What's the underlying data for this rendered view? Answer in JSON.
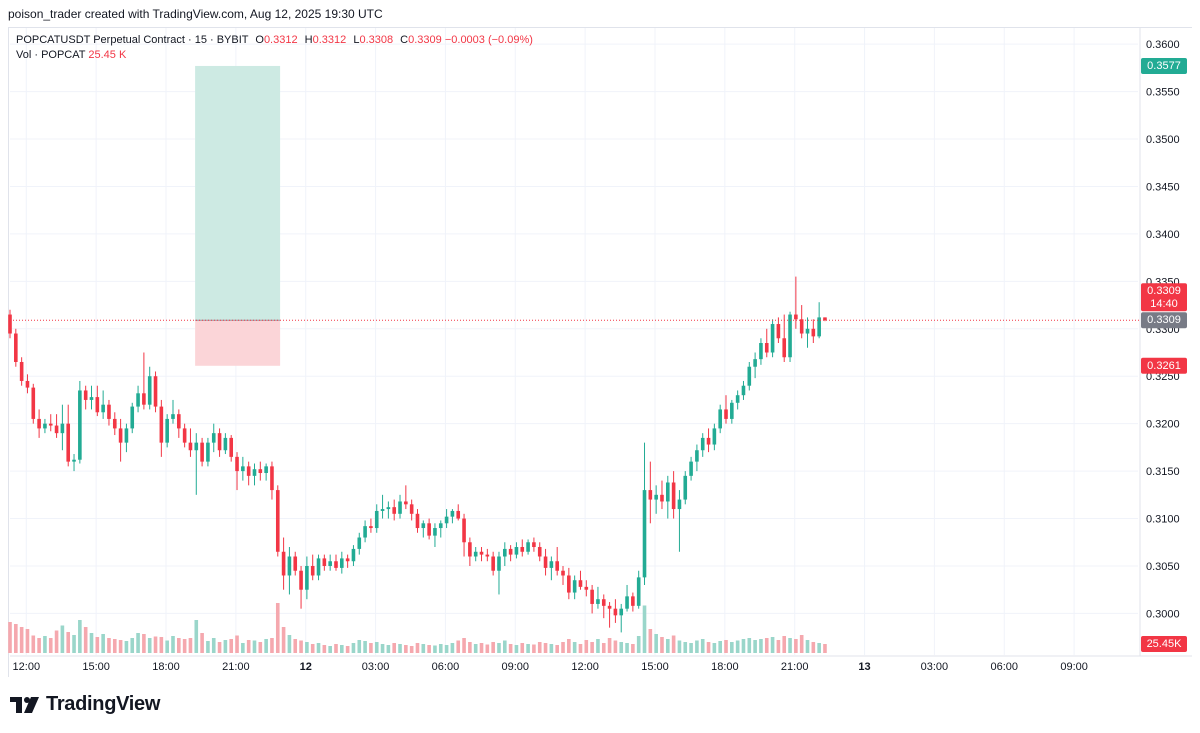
{
  "header": {
    "attribution": "poison_trader created with TradingView.com, Aug 12, 2025 19:30 UTC"
  },
  "legend": {
    "symbol": "POPCATUSDT Perpetual Contract · 15 · BYBIT",
    "open_label": "O",
    "open": "0.3312",
    "high_label": "H",
    "high": "0.3312",
    "low_label": "L",
    "low": "0.3308",
    "close_label": "C",
    "close": "0.3309",
    "change": "−0.0003 (−0.09%)",
    "vol_label": "Vol · POPCAT",
    "vol_value": "25.45 K"
  },
  "brand": {
    "name": "TradingView",
    "logo_icon": "tradingview-logo-icon"
  },
  "colors": {
    "up": "#22ab94",
    "down": "#f23645",
    "vol_up": "#9ad6ca",
    "vol_down": "#f5a8ae",
    "target_zone": "#cdeae3",
    "stop_zone": "#fbd5d8",
    "axis_text": "#131722",
    "grid": "#f0f3fa"
  },
  "chart_data": {
    "type": "candlestick",
    "interval": "15",
    "price_axis_ticks": [
      "0.3600",
      "0.3550",
      "0.3500",
      "0.3450",
      "0.3400",
      "0.3350",
      "0.3300",
      "0.3250",
      "0.3200",
      "0.3150",
      "0.3100",
      "0.3050",
      "0.3000"
    ],
    "ylim": [
      0.2972,
      0.3617
    ],
    "time_axis_ticks": [
      {
        "label": "12:00",
        "hour": 12,
        "bold": false
      },
      {
        "label": "15:00",
        "hour": 15,
        "bold": false
      },
      {
        "label": "18:00",
        "hour": 18,
        "bold": false
      },
      {
        "label": "21:00",
        "hour": 21,
        "bold": false
      },
      {
        "label": "12",
        "hour": 24,
        "bold": true
      },
      {
        "label": "03:00",
        "hour": 27,
        "bold": false
      },
      {
        "label": "06:00",
        "hour": 30,
        "bold": false
      },
      {
        "label": "09:00",
        "hour": 33,
        "bold": false
      },
      {
        "label": "12:00",
        "hour": 36,
        "bold": false
      },
      {
        "label": "15:00",
        "hour": 39,
        "bold": false
      },
      {
        "label": "18:00",
        "hour": 42,
        "bold": false
      },
      {
        "label": "21:00",
        "hour": 45,
        "bold": false
      },
      {
        "label": "13",
        "hour": 48,
        "bold": true
      },
      {
        "label": "03:00",
        "hour": 51,
        "bold": false
      },
      {
        "label": "06:00",
        "hour": 54,
        "bold": false
      },
      {
        "label": "09:00",
        "hour": 57,
        "bold": false
      }
    ],
    "xlim_hours": [
      11.3,
      59.4
    ],
    "first_candle_hour": 11.3,
    "candle_interval_hours": 0.25,
    "ohlc": [
      [
        0.3315,
        0.332,
        0.329,
        0.3295
      ],
      [
        0.3295,
        0.33,
        0.326,
        0.3265
      ],
      [
        0.3265,
        0.327,
        0.324,
        0.3245
      ],
      [
        0.3245,
        0.3252,
        0.3232,
        0.3238
      ],
      [
        0.3238,
        0.3242,
        0.32,
        0.3205
      ],
      [
        0.3205,
        0.3215,
        0.3185,
        0.3195
      ],
      [
        0.3195,
        0.3205,
        0.319,
        0.32
      ],
      [
        0.32,
        0.321,
        0.3192,
        0.3198
      ],
      [
        0.3198,
        0.321,
        0.3185,
        0.319
      ],
      [
        0.319,
        0.322,
        0.3172,
        0.32
      ],
      [
        0.32,
        0.322,
        0.3155,
        0.316
      ],
      [
        0.316,
        0.3168,
        0.315,
        0.3162
      ],
      [
        0.3162,
        0.3245,
        0.3158,
        0.3235
      ],
      [
        0.3235,
        0.324,
        0.3215,
        0.3225
      ],
      [
        0.3225,
        0.324,
        0.3215,
        0.3228
      ],
      [
        0.3228,
        0.324,
        0.3208,
        0.3212
      ],
      [
        0.3212,
        0.3235,
        0.3205,
        0.322
      ],
      [
        0.322,
        0.3225,
        0.3198,
        0.3205
      ],
      [
        0.3205,
        0.3212,
        0.3188,
        0.3195
      ],
      [
        0.3195,
        0.3205,
        0.316,
        0.318
      ],
      [
        0.318,
        0.32,
        0.317,
        0.3195
      ],
      [
        0.3195,
        0.3222,
        0.319,
        0.3218
      ],
      [
        0.3218,
        0.324,
        0.3212,
        0.3232
      ],
      [
        0.3232,
        0.3275,
        0.3215,
        0.322
      ],
      [
        0.322,
        0.326,
        0.3215,
        0.325
      ],
      [
        0.325,
        0.3255,
        0.3212,
        0.3218
      ],
      [
        0.3218,
        0.3225,
        0.3165,
        0.318
      ],
      [
        0.318,
        0.321,
        0.3175,
        0.3205
      ],
      [
        0.3205,
        0.3225,
        0.32,
        0.321
      ],
      [
        0.321,
        0.3215,
        0.3185,
        0.3195
      ],
      [
        0.3195,
        0.32,
        0.3175,
        0.318
      ],
      [
        0.318,
        0.3195,
        0.3165,
        0.3172
      ],
      [
        0.3172,
        0.319,
        0.3125,
        0.318
      ],
      [
        0.318,
        0.3185,
        0.3155,
        0.316
      ],
      [
        0.316,
        0.3185,
        0.3155,
        0.318
      ],
      [
        0.318,
        0.32,
        0.317,
        0.319
      ],
      [
        0.319,
        0.3195,
        0.3165,
        0.3172
      ],
      [
        0.3172,
        0.319,
        0.3168,
        0.3185
      ],
      [
        0.3185,
        0.3188,
        0.316,
        0.3165
      ],
      [
        0.3165,
        0.317,
        0.313,
        0.315
      ],
      [
        0.315,
        0.3165,
        0.314,
        0.3155
      ],
      [
        0.3155,
        0.316,
        0.3135,
        0.3145
      ],
      [
        0.3145,
        0.3158,
        0.3135,
        0.3152
      ],
      [
        0.3152,
        0.316,
        0.314,
        0.3148
      ],
      [
        0.3148,
        0.3158,
        0.314,
        0.3155
      ],
      [
        0.3155,
        0.316,
        0.312,
        0.313
      ],
      [
        0.313,
        0.3135,
        0.306,
        0.3065
      ],
      [
        0.3065,
        0.308,
        0.3025,
        0.304
      ],
      [
        0.304,
        0.307,
        0.302,
        0.306
      ],
      [
        0.306,
        0.3065,
        0.304,
        0.3045
      ],
      [
        0.3045,
        0.305,
        0.3005,
        0.3025
      ],
      [
        0.3025,
        0.306,
        0.3015,
        0.305
      ],
      [
        0.305,
        0.3062,
        0.3035,
        0.304
      ],
      [
        0.304,
        0.3062,
        0.3035,
        0.3058
      ],
      [
        0.3058,
        0.3062,
        0.3045,
        0.305
      ],
      [
        0.305,
        0.3062,
        0.3045,
        0.3055
      ],
      [
        0.3055,
        0.3062,
        0.3045,
        0.3048
      ],
      [
        0.3048,
        0.3065,
        0.3042,
        0.3058
      ],
      [
        0.3058,
        0.3062,
        0.3048,
        0.3055
      ],
      [
        0.3055,
        0.3072,
        0.305,
        0.3068
      ],
      [
        0.3068,
        0.3085,
        0.3062,
        0.308
      ],
      [
        0.308,
        0.3098,
        0.3075,
        0.3092
      ],
      [
        0.3092,
        0.31,
        0.3085,
        0.309
      ],
      [
        0.309,
        0.3115,
        0.3085,
        0.3108
      ],
      [
        0.3108,
        0.3125,
        0.31,
        0.311
      ],
      [
        0.311,
        0.3118,
        0.31,
        0.3112
      ],
      [
        0.3112,
        0.312,
        0.3098,
        0.3105
      ],
      [
        0.3105,
        0.3125,
        0.31,
        0.3118
      ],
      [
        0.3118,
        0.3135,
        0.311,
        0.3115
      ],
      [
        0.3115,
        0.312,
        0.3098,
        0.3105
      ],
      [
        0.3105,
        0.311,
        0.3085,
        0.309
      ],
      [
        0.309,
        0.3098,
        0.308,
        0.3095
      ],
      [
        0.3095,
        0.31,
        0.3078,
        0.3082
      ],
      [
        0.3082,
        0.3095,
        0.307,
        0.309
      ],
      [
        0.309,
        0.3098,
        0.308,
        0.3095
      ],
      [
        0.3095,
        0.311,
        0.309,
        0.3102
      ],
      [
        0.3102,
        0.311,
        0.3095,
        0.3108
      ],
      [
        0.3108,
        0.3115,
        0.3098,
        0.31
      ],
      [
        0.31,
        0.3105,
        0.306,
        0.3075
      ],
      [
        0.3075,
        0.308,
        0.305,
        0.306
      ],
      [
        0.306,
        0.307,
        0.3055,
        0.3065
      ],
      [
        0.3065,
        0.307,
        0.3055,
        0.3062
      ],
      [
        0.3062,
        0.3068,
        0.3055,
        0.306
      ],
      [
        0.306,
        0.3065,
        0.304,
        0.3045
      ],
      [
        0.3045,
        0.3065,
        0.302,
        0.306
      ],
      [
        0.306,
        0.3075,
        0.305,
        0.3068
      ],
      [
        0.3068,
        0.3072,
        0.3055,
        0.3062
      ],
      [
        0.3062,
        0.3075,
        0.3058,
        0.307
      ],
      [
        0.307,
        0.3078,
        0.306,
        0.3065
      ],
      [
        0.3065,
        0.3078,
        0.3062,
        0.3075
      ],
      [
        0.3075,
        0.308,
        0.3065,
        0.307
      ],
      [
        0.307,
        0.3075,
        0.3055,
        0.306
      ],
      [
        0.306,
        0.3068,
        0.304,
        0.3048
      ],
      [
        0.3048,
        0.306,
        0.3035,
        0.3055
      ],
      [
        0.3055,
        0.307,
        0.304,
        0.3045
      ],
      [
        0.3045,
        0.305,
        0.303,
        0.304
      ],
      [
        0.304,
        0.3048,
        0.3015,
        0.3022
      ],
      [
        0.3022,
        0.304,
        0.3015,
        0.3035
      ],
      [
        0.3035,
        0.3045,
        0.3025,
        0.3028
      ],
      [
        0.3028,
        0.3035,
        0.3018,
        0.3025
      ],
      [
        0.3025,
        0.303,
        0.3,
        0.301
      ],
      [
        0.301,
        0.3028,
        0.3005,
        0.3015
      ],
      [
        0.3015,
        0.302,
        0.2995,
        0.3008
      ],
      [
        0.3008,
        0.3012,
        0.2985,
        0.3005
      ],
      [
        0.3005,
        0.3015,
        0.299,
        0.2998
      ],
      [
        0.2998,
        0.301,
        0.298,
        0.3005
      ],
      [
        0.3005,
        0.303,
        0.3002,
        0.3018
      ],
      [
        0.3018,
        0.3022,
        0.3002,
        0.3008
      ],
      [
        0.3008,
        0.3045,
        0.3005,
        0.3038
      ],
      [
        0.3038,
        0.318,
        0.303,
        0.313
      ],
      [
        0.313,
        0.316,
        0.3095,
        0.312
      ],
      [
        0.312,
        0.3135,
        0.3105,
        0.3125
      ],
      [
        0.3125,
        0.314,
        0.311,
        0.3118
      ],
      [
        0.3118,
        0.3145,
        0.31,
        0.3138
      ],
      [
        0.3138,
        0.315,
        0.31,
        0.311
      ],
      [
        0.311,
        0.313,
        0.3065,
        0.312
      ],
      [
        0.312,
        0.315,
        0.3115,
        0.3145
      ],
      [
        0.3145,
        0.3165,
        0.314,
        0.316
      ],
      [
        0.316,
        0.3178,
        0.315,
        0.3172
      ],
      [
        0.3172,
        0.319,
        0.3165,
        0.3185
      ],
      [
        0.3185,
        0.3195,
        0.317,
        0.3178
      ],
      [
        0.3178,
        0.32,
        0.3172,
        0.3195
      ],
      [
        0.3195,
        0.322,
        0.319,
        0.3215
      ],
      [
        0.3215,
        0.323,
        0.32,
        0.3205
      ],
      [
        0.3205,
        0.3225,
        0.32,
        0.3222
      ],
      [
        0.3222,
        0.3235,
        0.3215,
        0.323
      ],
      [
        0.323,
        0.3245,
        0.3225,
        0.324
      ],
      [
        0.324,
        0.3265,
        0.3235,
        0.326
      ],
      [
        0.326,
        0.3275,
        0.3248,
        0.3268
      ],
      [
        0.3268,
        0.329,
        0.3262,
        0.3285
      ],
      [
        0.3285,
        0.33,
        0.327,
        0.3275
      ],
      [
        0.3275,
        0.331,
        0.327,
        0.3305
      ],
      [
        0.3305,
        0.3312,
        0.3285,
        0.329
      ],
      [
        0.329,
        0.3315,
        0.3265,
        0.327
      ],
      [
        0.327,
        0.3318,
        0.3265,
        0.3315
      ],
      [
        0.3315,
        0.3355,
        0.33,
        0.331
      ],
      [
        0.331,
        0.3325,
        0.329,
        0.3295
      ],
      [
        0.3295,
        0.3312,
        0.328,
        0.33
      ],
      [
        0.33,
        0.331,
        0.3285,
        0.3292
      ],
      [
        0.3292,
        0.3328,
        0.329,
        0.3312
      ],
      [
        0.3312,
        0.3312,
        0.3308,
        0.3309
      ]
    ],
    "volume": [
      0.62,
      0.58,
      0.52,
      0.48,
      0.35,
      0.3,
      0.34,
      0.3,
      0.45,
      0.55,
      0.42,
      0.36,
      0.66,
      0.52,
      0.4,
      0.32,
      0.38,
      0.3,
      0.28,
      0.26,
      0.24,
      0.3,
      0.4,
      0.38,
      0.3,
      0.33,
      0.32,
      0.25,
      0.34,
      0.3,
      0.28,
      0.3,
      0.66,
      0.4,
      0.24,
      0.3,
      0.22,
      0.26,
      0.28,
      0.35,
      0.2,
      0.26,
      0.25,
      0.22,
      0.28,
      0.3,
      1.0,
      0.52,
      0.36,
      0.28,
      0.25,
      0.22,
      0.18,
      0.2,
      0.16,
      0.14,
      0.18,
      0.16,
      0.14,
      0.2,
      0.26,
      0.24,
      0.2,
      0.22,
      0.18,
      0.16,
      0.2,
      0.18,
      0.16,
      0.14,
      0.2,
      0.18,
      0.16,
      0.15,
      0.18,
      0.16,
      0.2,
      0.25,
      0.3,
      0.22,
      0.18,
      0.2,
      0.17,
      0.22,
      0.2,
      0.25,
      0.18,
      0.16,
      0.2,
      0.18,
      0.17,
      0.22,
      0.2,
      0.18,
      0.16,
      0.22,
      0.28,
      0.22,
      0.18,
      0.26,
      0.22,
      0.28,
      0.2,
      0.3,
      0.25,
      0.22,
      0.2,
      0.18,
      0.34,
      0.95,
      0.48,
      0.38,
      0.32,
      0.28,
      0.35,
      0.25,
      0.22,
      0.2,
      0.25,
      0.28,
      0.22,
      0.2,
      0.24,
      0.26,
      0.22,
      0.25,
      0.28,
      0.3,
      0.26,
      0.28,
      0.3,
      0.32,
      0.26,
      0.34,
      0.3,
      0.28,
      0.36,
      0.26,
      0.22,
      0.2,
      0.18,
      0.16,
      0.14
    ],
    "position": {
      "entry": 0.3309,
      "target": 0.3577,
      "stop": 0.3261,
      "start_hour": 19.25,
      "end_hour": 22.9
    },
    "price_labels": {
      "target": "0.3577",
      "last_price": "0.3309",
      "countdown": "14:40",
      "entry": "0.3309",
      "stop": "0.3261",
      "volume": "25.45K"
    }
  }
}
